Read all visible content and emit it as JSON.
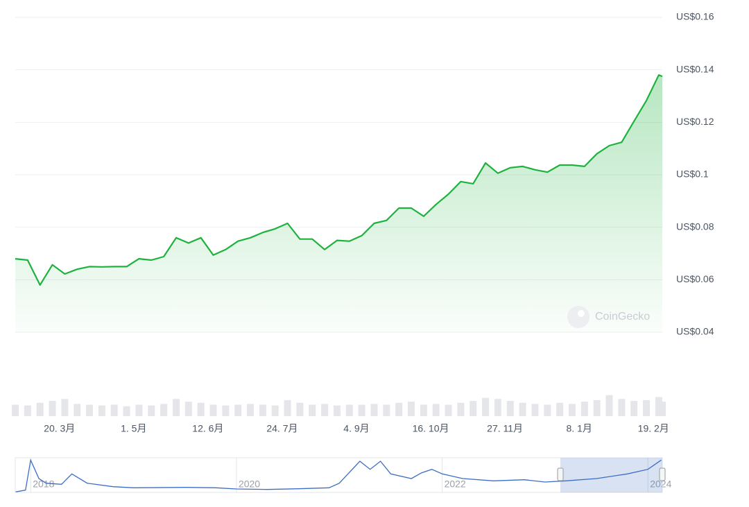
{
  "chart_data": {
    "type": "line",
    "watermark": "CoinGecko",
    "color": "#1db23d",
    "x": [
      0,
      7,
      14,
      21,
      28,
      35,
      42,
      49,
      56,
      63,
      70,
      77,
      84,
      91,
      98,
      105,
      112,
      119,
      126,
      133,
      140,
      147,
      154,
      161,
      168,
      175,
      182,
      189,
      196,
      203,
      210,
      217,
      224,
      231,
      238,
      245,
      252,
      259,
      266,
      273,
      280,
      287,
      294,
      301,
      308,
      315,
      322,
      329,
      336,
      343,
      350,
      357,
      364,
      366
    ],
    "values": [
      0.068,
      0.0675,
      0.058,
      0.0657,
      0.0622,
      0.064,
      0.065,
      0.0649,
      0.065,
      0.065,
      0.068,
      0.0675,
      0.0688,
      0.076,
      0.074,
      0.076,
      0.0694,
      0.0715,
      0.0747,
      0.076,
      0.078,
      0.0794,
      0.0815,
      0.0755,
      0.0755,
      0.0715,
      0.075,
      0.0747,
      0.0768,
      0.0815,
      0.0826,
      0.0873,
      0.0873,
      0.0842,
      0.0887,
      0.0926,
      0.0974,
      0.0966,
      0.1045,
      0.1006,
      0.1027,
      0.1032,
      0.1019,
      0.101,
      0.1037,
      0.1037,
      0.1032,
      0.108,
      0.1111,
      0.1124,
      0.1204,
      0.1283,
      0.138,
      0.1375
    ],
    "xlim": [
      0,
      366
    ],
    "xticks": [
      {
        "value": 25,
        "label": "20. 3月"
      },
      {
        "value": 67,
        "label": "1. 5月"
      },
      {
        "value": 109,
        "label": "12. 6月"
      },
      {
        "value": 151,
        "label": "24. 7月"
      },
      {
        "value": 193,
        "label": "4. 9月"
      },
      {
        "value": 235,
        "label": "16. 10月"
      },
      {
        "value": 277,
        "label": "27. 11月"
      },
      {
        "value": 319,
        "label": "8. 1月"
      },
      {
        "value": 361,
        "label": "19. 2月"
      }
    ],
    "ylim": [
      0.04,
      0.16
    ],
    "yticks": [
      {
        "value": 0.04,
        "label": "US$0.04"
      },
      {
        "value": 0.06,
        "label": "US$0.06"
      },
      {
        "value": 0.08,
        "label": "US$0.08"
      },
      {
        "value": 0.1,
        "label": "US$0.1"
      },
      {
        "value": 0.12,
        "label": "US$0.12"
      },
      {
        "value": 0.14,
        "label": "US$0.14"
      },
      {
        "value": 0.16,
        "label": "US$0.16"
      }
    ],
    "grid": true,
    "volume": {
      "color": "#e4e6ea",
      "ylim": [
        0,
        100
      ],
      "values": [
        30,
        28,
        35,
        40,
        45,
        32,
        30,
        28,
        30,
        26,
        30,
        28,
        32,
        45,
        38,
        35,
        30,
        28,
        30,
        32,
        30,
        28,
        42,
        35,
        30,
        32,
        28,
        30,
        30,
        32,
        30,
        35,
        38,
        30,
        32,
        30,
        35,
        40,
        48,
        45,
        40,
        35,
        32,
        30,
        35,
        32,
        38,
        42,
        55,
        45,
        40,
        42,
        50,
        38
      ]
    },
    "navigator": {
      "color": "#3b6dc4",
      "xlim": [
        2017.85,
        2024.14
      ],
      "ylim": [
        0,
        0.15
      ],
      "x": [
        2017.85,
        2017.95,
        2018.0,
        2018.08,
        2018.15,
        2018.3,
        2018.4,
        2018.55,
        2018.8,
        2019.0,
        2019.5,
        2019.8,
        2020.0,
        2020.3,
        2020.6,
        2020.9,
        2021.0,
        2021.2,
        2021.3,
        2021.4,
        2021.5,
        2021.7,
        2021.8,
        2021.9,
        2022.0,
        2022.2,
        2022.5,
        2022.8,
        2023.0,
        2023.2,
        2023.5,
        2023.8,
        2024.0,
        2024.13
      ],
      "values": [
        0.002,
        0.01,
        0.14,
        0.06,
        0.04,
        0.035,
        0.08,
        0.04,
        0.025,
        0.02,
        0.022,
        0.02,
        0.015,
        0.013,
        0.016,
        0.02,
        0.04,
        0.135,
        0.1,
        0.135,
        0.08,
        0.06,
        0.085,
        0.1,
        0.08,
        0.06,
        0.05,
        0.055,
        0.045,
        0.05,
        0.06,
        0.08,
        0.1,
        0.14
      ],
      "xticks": [
        {
          "value": 2018,
          "label": "2018"
        },
        {
          "value": 2020,
          "label": "2020"
        },
        {
          "value": 2022,
          "label": "2022"
        },
        {
          "value": 2024,
          "label": "2024"
        }
      ]
    }
  }
}
